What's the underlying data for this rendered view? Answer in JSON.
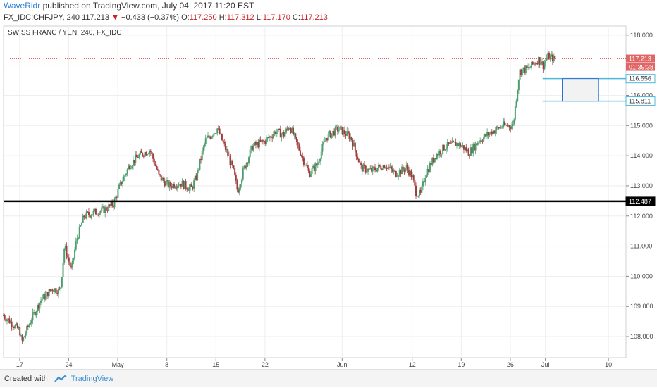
{
  "header": {
    "author": "WaveRidr",
    "published_text": "published on TradingView.com, July 04, 2017 11:20 EST"
  },
  "quote": {
    "symbol": "FX_IDC:CHFJPY, 240",
    "last": "117.213",
    "change": "−0.433 (−0.37%)",
    "o_label": "O:",
    "o_value": "117.250",
    "h_label": "H:",
    "h_value": "117.312",
    "l_label": "L:",
    "l_value": "117.170",
    "c_label": "C:",
    "c_value": "117.213"
  },
  "footer": {
    "created_with": "Created with",
    "brand": "TradingView"
  },
  "colors": {
    "up": "#4d9e6f",
    "down": "#a23c3c",
    "level_line": "#000000",
    "box_line": "#4fb8d8",
    "price_badge": "#e06666",
    "level_badge": "#000000"
  },
  "chart_data": {
    "type": "candlestick",
    "title": "SWISS FRANC / YEN, 240, FX_IDC",
    "ylim": [
      107.3,
      118.3
    ],
    "y_ticks": [
      "118.000",
      "117.000",
      "116.000",
      "115.000",
      "114.000",
      "113.000",
      "112.000",
      "111.000",
      "110.000",
      "109.000",
      "108.000"
    ],
    "x_ticks": [
      {
        "label": "17",
        "day": 0
      },
      {
        "label": "24",
        "day": 7
      },
      {
        "label": "May",
        "day": 14
      },
      {
        "label": "8",
        "day": 21
      },
      {
        "label": "15",
        "day": 28
      },
      {
        "label": "22",
        "day": 35
      },
      {
        "label": "Jun",
        "day": 46
      },
      {
        "label": "12",
        "day": 56
      },
      {
        "label": "19",
        "day": 63
      },
      {
        "label": "26",
        "day": 70
      },
      {
        "label": "Jul",
        "day": 75
      },
      {
        "label": "10",
        "day": 84
      }
    ],
    "x_range_days": [
      -2.3,
      86.5
    ],
    "candles_per_day": 6,
    "close_path": [
      {
        "day": -2.3,
        "price": 108.7
      },
      {
        "day": 0,
        "price": 108.2
      },
      {
        "day": 0.3,
        "price": 107.8
      },
      {
        "day": 1.5,
        "price": 108.5
      },
      {
        "day": 3,
        "price": 109.2
      },
      {
        "day": 4.7,
        "price": 109.6
      },
      {
        "day": 5.8,
        "price": 109.5
      },
      {
        "day": 6.4,
        "price": 111.0
      },
      {
        "day": 7.4,
        "price": 110.2
      },
      {
        "day": 8.1,
        "price": 111.2
      },
      {
        "day": 9.2,
        "price": 112.0
      },
      {
        "day": 10.4,
        "price": 112.1
      },
      {
        "day": 12,
        "price": 112.2
      },
      {
        "day": 13.4,
        "price": 112.4
      },
      {
        "day": 14.3,
        "price": 113.0
      },
      {
        "day": 15.7,
        "price": 113.7
      },
      {
        "day": 17,
        "price": 114.0
      },
      {
        "day": 18.6,
        "price": 114.2
      },
      {
        "day": 19.9,
        "price": 113.3
      },
      {
        "day": 21.3,
        "price": 113.0
      },
      {
        "day": 22.9,
        "price": 113.1
      },
      {
        "day": 24.5,
        "price": 112.9
      },
      {
        "day": 25.2,
        "price": 113.3
      },
      {
        "day": 26.5,
        "price": 114.5
      },
      {
        "day": 28.2,
        "price": 114.9
      },
      {
        "day": 29.6,
        "price": 114.1
      },
      {
        "day": 30.5,
        "price": 113.5
      },
      {
        "day": 31.1,
        "price": 112.8
      },
      {
        "day": 31.9,
        "price": 113.5
      },
      {
        "day": 33.2,
        "price": 114.3
      },
      {
        "day": 35.1,
        "price": 114.5
      },
      {
        "day": 36.5,
        "price": 114.8
      },
      {
        "day": 37.7,
        "price": 114.7
      },
      {
        "day": 38.5,
        "price": 115.0
      },
      {
        "day": 39.9,
        "price": 114.2
      },
      {
        "day": 41.3,
        "price": 113.4
      },
      {
        "day": 42.4,
        "price": 113.7
      },
      {
        "day": 43.7,
        "price": 114.6
      },
      {
        "day": 45.5,
        "price": 114.9
      },
      {
        "day": 47.3,
        "price": 114.6
      },
      {
        "day": 48.7,
        "price": 113.6
      },
      {
        "day": 50.1,
        "price": 113.5
      },
      {
        "day": 52.1,
        "price": 113.7
      },
      {
        "day": 53.6,
        "price": 113.4
      },
      {
        "day": 55.2,
        "price": 113.6
      },
      {
        "day": 56,
        "price": 113.3
      },
      {
        "day": 56.5,
        "price": 112.8
      },
      {
        "day": 57.2,
        "price": 112.7
      },
      {
        "day": 57.9,
        "price": 113.4
      },
      {
        "day": 59.3,
        "price": 114.0
      },
      {
        "day": 60.7,
        "price": 114.3
      },
      {
        "day": 62.4,
        "price": 114.4
      },
      {
        "day": 63.2,
        "price": 114.3
      },
      {
        "day": 64.1,
        "price": 114.1
      },
      {
        "day": 65.5,
        "price": 114.5
      },
      {
        "day": 67.4,
        "price": 114.8
      },
      {
        "day": 68.9,
        "price": 115.0
      },
      {
        "day": 70.4,
        "price": 115.0
      },
      {
        "day": 71,
        "price": 116.2
      },
      {
        "day": 71.3,
        "price": 116.8
      },
      {
        "day": 72.7,
        "price": 116.9
      },
      {
        "day": 74,
        "price": 117.2
      },
      {
        "day": 74.7,
        "price": 117.0
      },
      {
        "day": 75.3,
        "price": 117.3
      },
      {
        "day": 76.4,
        "price": 117.2
      }
    ],
    "horizontal_levels": [
      {
        "price": "112.487",
        "style": "thick"
      },
      {
        "price": "116.556",
        "style": "box"
      },
      {
        "price": "115.811",
        "style": "box"
      }
    ],
    "last_price": "117.213",
    "countdown": "01:39:38"
  }
}
